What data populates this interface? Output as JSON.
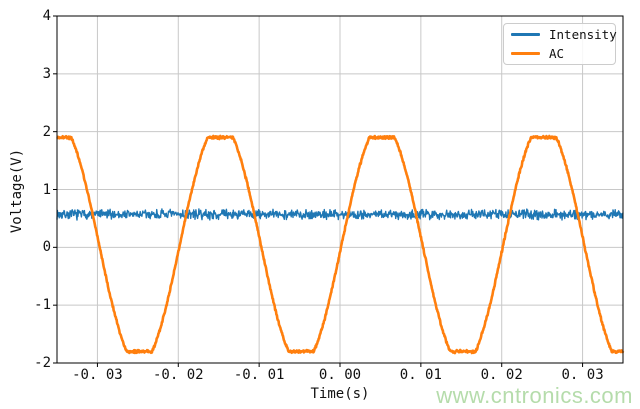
{
  "watermark": {
    "text": "www.cntronics.com",
    "color": "#b5dcab"
  },
  "legend": {
    "position": "upper right",
    "items": [
      {
        "label": "Intensity",
        "color": "#1f77b4"
      },
      {
        "label": "AC",
        "color": "#ff7f0e"
      }
    ]
  },
  "chart_data": {
    "type": "line",
    "title": "",
    "xlabel": "Time(s)",
    "ylabel": "Voltage(V)",
    "xlim": [
      -0.035,
      0.035
    ],
    "ylim": [
      -2,
      4
    ],
    "xticks": [
      -0.03,
      -0.02,
      -0.01,
      0.0,
      0.01,
      0.02,
      0.03
    ],
    "xtick_labels": [
      "-0. 03",
      "-0. 02",
      "-0. 01",
      "0. 00",
      "0. 01",
      "0. 02",
      "0. 03"
    ],
    "yticks": [
      -2,
      -1,
      0,
      1,
      2,
      3,
      4
    ],
    "ytick_labels": [
      "-2",
      "-1",
      "0",
      "1",
      "2",
      "3",
      "4"
    ],
    "grid": true,
    "grid_color": "#c8c8c8",
    "axis_color": "#000000",
    "legend_position": "upper right",
    "series": [
      {
        "name": "Intensity",
        "color": "#1f77b4",
        "waveform": "noisy_constant",
        "mean_v": 0.57,
        "noise_peak_v": 0.1,
        "line_width": 1.4,
        "seed": 7
      },
      {
        "name": "AC",
        "color": "#ff7f0e",
        "waveform": "clipped_sine",
        "frequency_hz": 50,
        "period_s": 0.02,
        "peak_time_s": -0.0148,
        "overdrive_amplitude_v": 2.1,
        "clip_level_v": 1.85,
        "dc_offset_v": 0.05,
        "peak_value_v": 1.9,
        "trough_value_v": -1.8,
        "noise_peak_v": 0.03,
        "line_width": 2.6,
        "seed": 21
      }
    ]
  }
}
